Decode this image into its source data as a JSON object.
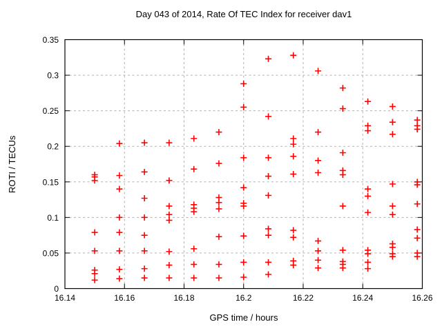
{
  "chart_data": {
    "type": "scatter",
    "title": "Day 043 of 2014, Rate Of TEC Index for receiver dav1",
    "xlabel": "GPS time / hours",
    "ylabel": "ROTI / TECUs",
    "xlim": [
      16.14,
      16.26
    ],
    "ylim": [
      0,
      0.35
    ],
    "xticks": [
      {
        "v": 16.14,
        "label": "16.14"
      },
      {
        "v": 16.16,
        "label": "16.16"
      },
      {
        "v": 16.18,
        "label": "16.18"
      },
      {
        "v": 16.2,
        "label": "16.2"
      },
      {
        "v": 16.22,
        "label": "16.22"
      },
      {
        "v": 16.24,
        "label": "16.24"
      },
      {
        "v": 16.26,
        "label": "16.26"
      }
    ],
    "yticks": [
      {
        "v": 0.0,
        "label": "0"
      },
      {
        "v": 0.05,
        "label": "0.05"
      },
      {
        "v": 0.1,
        "label": "0.1"
      },
      {
        "v": 0.15,
        "label": "0.15"
      },
      {
        "v": 0.2,
        "label": "0.2"
      },
      {
        "v": 0.25,
        "label": "0.25"
      },
      {
        "v": 0.3,
        "label": "0.3"
      },
      {
        "v": 0.35,
        "label": "0.35"
      }
    ],
    "grid": true,
    "legend": false,
    "marker": "plus",
    "marker_color": "#ff0000",
    "grid_color": "#b0b0b0",
    "border_color": "#000000",
    "series": [
      {
        "name": "ROTI",
        "points": [
          [
            16.15,
            0.16
          ],
          [
            16.15,
            0.157
          ],
          [
            16.15,
            0.152
          ],
          [
            16.15,
            0.079
          ],
          [
            16.15,
            0.053
          ],
          [
            16.15,
            0.026
          ],
          [
            16.15,
            0.021
          ],
          [
            16.15,
            0.012
          ],
          [
            16.1583,
            0.204
          ],
          [
            16.1583,
            0.159
          ],
          [
            16.1583,
            0.14
          ],
          [
            16.1583,
            0.1
          ],
          [
            16.1583,
            0.079
          ],
          [
            16.1583,
            0.053
          ],
          [
            16.1583,
            0.027
          ],
          [
            16.1583,
            0.014
          ],
          [
            16.1667,
            0.205
          ],
          [
            16.1667,
            0.164
          ],
          [
            16.1667,
            0.127
          ],
          [
            16.1667,
            0.1
          ],
          [
            16.1667,
            0.075
          ],
          [
            16.1667,
            0.053
          ],
          [
            16.1667,
            0.028
          ],
          [
            16.1667,
            0.015
          ],
          [
            16.175,
            0.205
          ],
          [
            16.175,
            0.152
          ],
          [
            16.175,
            0.116
          ],
          [
            16.175,
            0.104
          ],
          [
            16.175,
            0.096
          ],
          [
            16.175,
            0.052
          ],
          [
            16.175,
            0.033
          ],
          [
            16.175,
            0.015
          ],
          [
            16.1833,
            0.211
          ],
          [
            16.1833,
            0.168
          ],
          [
            16.1833,
            0.118
          ],
          [
            16.1833,
            0.113
          ],
          [
            16.1833,
            0.108
          ],
          [
            16.1833,
            0.056
          ],
          [
            16.1833,
            0.034
          ],
          [
            16.1833,
            0.015
          ],
          [
            16.1917,
            0.22
          ],
          [
            16.1917,
            0.176
          ],
          [
            16.1917,
            0.128
          ],
          [
            16.1917,
            0.121
          ],
          [
            16.1917,
            0.112
          ],
          [
            16.1917,
            0.073
          ],
          [
            16.1917,
            0.034
          ],
          [
            16.1917,
            0.015
          ],
          [
            16.2,
            0.288
          ],
          [
            16.2,
            0.255
          ],
          [
            16.2,
            0.184
          ],
          [
            16.2,
            0.142
          ],
          [
            16.2,
            0.12
          ],
          [
            16.2,
            0.116
          ],
          [
            16.2,
            0.074
          ],
          [
            16.2,
            0.037
          ],
          [
            16.2,
            0.016
          ],
          [
            16.2083,
            0.323
          ],
          [
            16.2083,
            0.242
          ],
          [
            16.2083,
            0.184
          ],
          [
            16.2083,
            0.158
          ],
          [
            16.2083,
            0.131
          ],
          [
            16.2083,
            0.084
          ],
          [
            16.2083,
            0.075
          ],
          [
            16.2083,
            0.037
          ],
          [
            16.2083,
            0.02
          ],
          [
            16.2167,
            0.328
          ],
          [
            16.2167,
            0.211
          ],
          [
            16.2167,
            0.203
          ],
          [
            16.2167,
            0.186
          ],
          [
            16.2167,
            0.161
          ],
          [
            16.2167,
            0.082
          ],
          [
            16.2167,
            0.072
          ],
          [
            16.2167,
            0.039
          ],
          [
            16.2167,
            0.033
          ],
          [
            16.225,
            0.306
          ],
          [
            16.225,
            0.22
          ],
          [
            16.225,
            0.18
          ],
          [
            16.225,
            0.163
          ],
          [
            16.225,
            0.067
          ],
          [
            16.225,
            0.053
          ],
          [
            16.225,
            0.04
          ],
          [
            16.225,
            0.029
          ],
          [
            16.2333,
            0.282
          ],
          [
            16.2333,
            0.253
          ],
          [
            16.2333,
            0.191
          ],
          [
            16.2333,
            0.166
          ],
          [
            16.2333,
            0.16
          ],
          [
            16.2333,
            0.116
          ],
          [
            16.2333,
            0.054
          ],
          [
            16.2333,
            0.038
          ],
          [
            16.2333,
            0.034
          ],
          [
            16.2333,
            0.029
          ],
          [
            16.2417,
            0.263
          ],
          [
            16.2417,
            0.229
          ],
          [
            16.2417,
            0.222
          ],
          [
            16.2417,
            0.14
          ],
          [
            16.2417,
            0.13
          ],
          [
            16.2417,
            0.107
          ],
          [
            16.2417,
            0.054
          ],
          [
            16.2417,
            0.049
          ],
          [
            16.2417,
            0.037
          ],
          [
            16.2417,
            0.028
          ],
          [
            16.25,
            0.256
          ],
          [
            16.25,
            0.234
          ],
          [
            16.25,
            0.217
          ],
          [
            16.25,
            0.147
          ],
          [
            16.25,
            0.116
          ],
          [
            16.25,
            0.104
          ],
          [
            16.25,
            0.063
          ],
          [
            16.25,
            0.058
          ],
          [
            16.25,
            0.049
          ],
          [
            16.25,
            0.045
          ],
          [
            16.2583,
            0.237
          ],
          [
            16.2583,
            0.229
          ],
          [
            16.2583,
            0.224
          ],
          [
            16.2583,
            0.15
          ],
          [
            16.2583,
            0.146
          ],
          [
            16.2583,
            0.119
          ],
          [
            16.2583,
            0.083
          ],
          [
            16.2583,
            0.071
          ],
          [
            16.2583,
            0.05
          ],
          [
            16.2583,
            0.045
          ]
        ]
      }
    ]
  }
}
